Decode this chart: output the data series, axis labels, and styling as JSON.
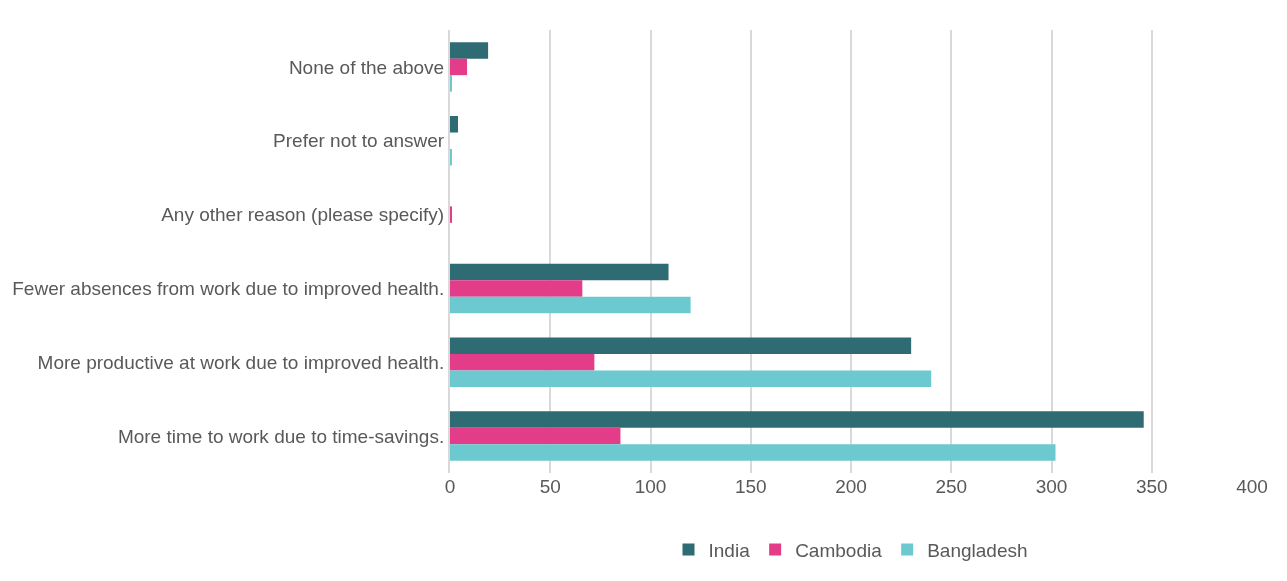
{
  "chart_data": {
    "type": "bar",
    "orientation": "horizontal",
    "categories": [
      "None of the above",
      "Prefer not to answer",
      "Any other reason (please specify)",
      "Fewer absences from work due to improved health.",
      "More productive at work due to improved health.",
      "More time to work due to time-savings."
    ],
    "series": [
      {
        "name": "India",
        "color": "#2e6b73",
        "values": [
          19,
          4,
          0,
          109,
          230,
          346
        ]
      },
      {
        "name": "Cambodia",
        "color": "#e33d8a",
        "values": [
          8.5,
          0,
          1,
          66,
          72,
          85
        ]
      },
      {
        "name": "Bangladesh",
        "color": "#6bc9cf",
        "values": [
          1,
          1,
          0,
          120,
          240,
          302
        ]
      }
    ],
    "xlim": [
      0,
      400
    ],
    "xticks": [
      0,
      50,
      100,
      150,
      200,
      250,
      300,
      350,
      400
    ],
    "grid": "x",
    "legend": "bottom"
  }
}
